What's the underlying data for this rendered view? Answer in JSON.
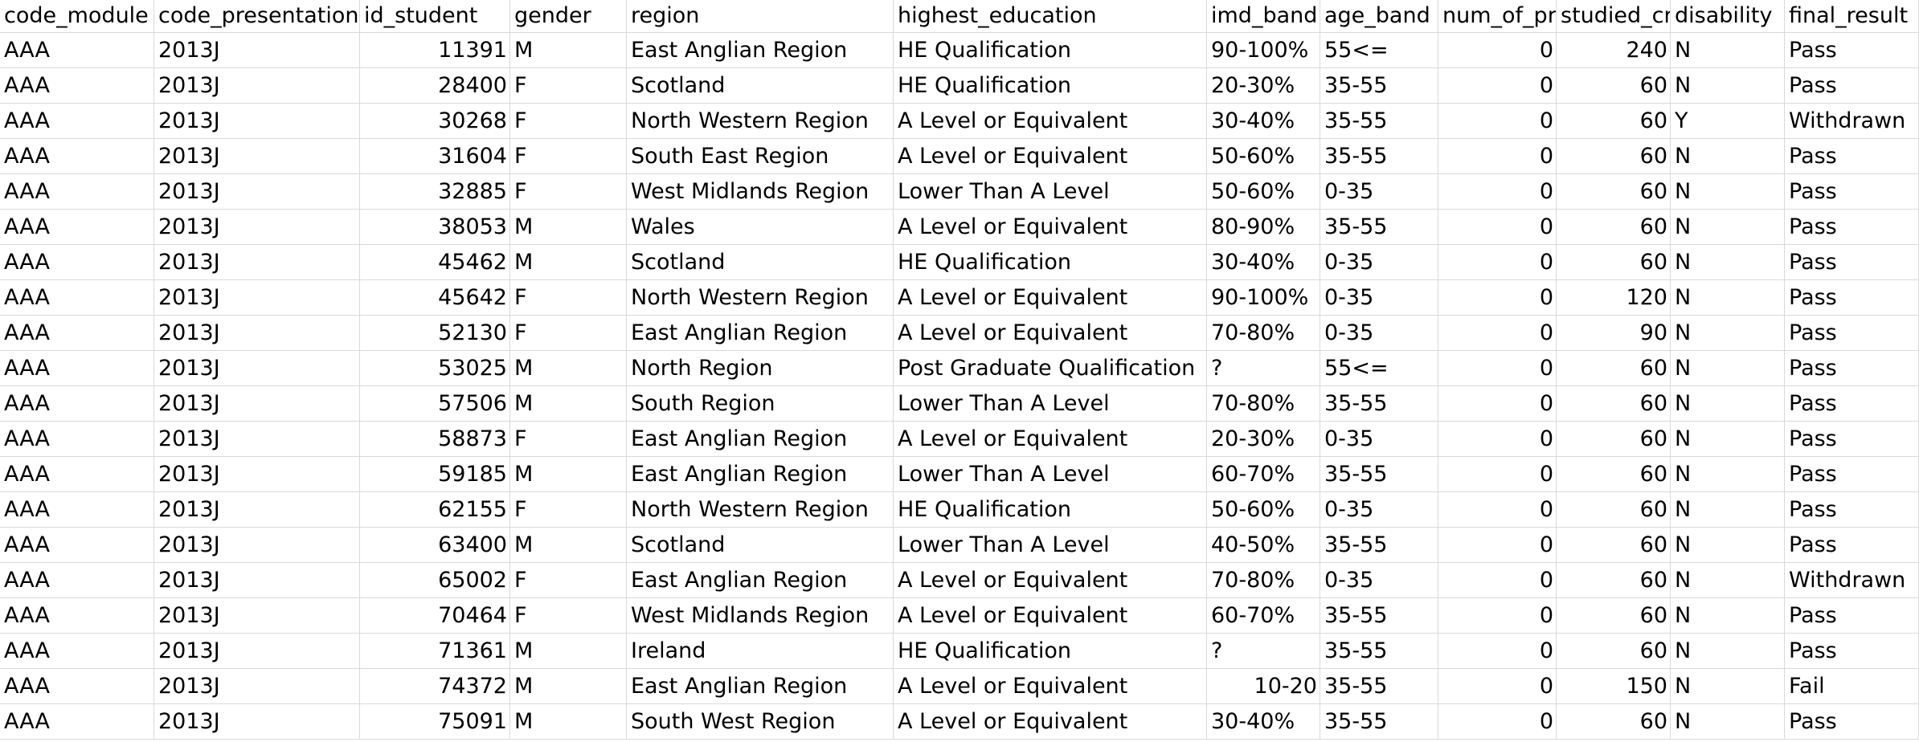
{
  "table": {
    "header": [
      "code_module",
      "code_presentation",
      "id_student",
      "gender",
      "region",
      "highest_education",
      "imd_band",
      "age_band",
      "num_of_pr",
      "studied_cre",
      "disability",
      "final_result"
    ],
    "rows": [
      [
        "AAA",
        "2013J",
        11391,
        "M",
        "East Anglian Region",
        "HE Qualification",
        "90-100%",
        "55<=",
        0,
        240,
        "N",
        "Pass"
      ],
      [
        "AAA",
        "2013J",
        28400,
        "F",
        "Scotland",
        "HE Qualification",
        "20-30%",
        "35-55",
        0,
        60,
        "N",
        "Pass"
      ],
      [
        "AAA",
        "2013J",
        30268,
        "F",
        "North Western Region",
        "A Level or Equivalent",
        "30-40%",
        "35-55",
        0,
        60,
        "Y",
        "Withdrawn"
      ],
      [
        "AAA",
        "2013J",
        31604,
        "F",
        "South East Region",
        "A Level or Equivalent",
        "50-60%",
        "35-55",
        0,
        60,
        "N",
        "Pass"
      ],
      [
        "AAA",
        "2013J",
        32885,
        "F",
        "West Midlands Region",
        "Lower Than A Level",
        "50-60%",
        "0-35",
        0,
        60,
        "N",
        "Pass"
      ],
      [
        "AAA",
        "2013J",
        38053,
        "M",
        "Wales",
        "A Level or Equivalent",
        "80-90%",
        "35-55",
        0,
        60,
        "N",
        "Pass"
      ],
      [
        "AAA",
        "2013J",
        45462,
        "M",
        "Scotland",
        "HE Qualification",
        "30-40%",
        "0-35",
        0,
        60,
        "N",
        "Pass"
      ],
      [
        "AAA",
        "2013J",
        45642,
        "F",
        "North Western Region",
        "A Level or Equivalent",
        "90-100%",
        "0-35",
        0,
        120,
        "N",
        "Pass"
      ],
      [
        "AAA",
        "2013J",
        52130,
        "F",
        "East Anglian Region",
        "A Level or Equivalent",
        "70-80%",
        "0-35",
        0,
        90,
        "N",
        "Pass"
      ],
      [
        "AAA",
        "2013J",
        53025,
        "M",
        "North Region",
        "Post Graduate Qualification",
        "?",
        "55<=",
        0,
        60,
        "N",
        "Pass"
      ],
      [
        "AAA",
        "2013J",
        57506,
        "M",
        "South Region",
        "Lower Than A Level",
        "70-80%",
        "35-55",
        0,
        60,
        "N",
        "Pass"
      ],
      [
        "AAA",
        "2013J",
        58873,
        "F",
        "East Anglian Region",
        "A Level or Equivalent",
        "20-30%",
        "0-35",
        0,
        60,
        "N",
        "Pass"
      ],
      [
        "AAA",
        "2013J",
        59185,
        "M",
        "East Anglian Region",
        "Lower Than A Level",
        "60-70%",
        "35-55",
        0,
        60,
        "N",
        "Pass"
      ],
      [
        "AAA",
        "2013J",
        62155,
        "F",
        "North Western Region",
        "HE Qualification",
        "50-60%",
        "0-35",
        0,
        60,
        "N",
        "Pass"
      ],
      [
        "AAA",
        "2013J",
        63400,
        "M",
        "Scotland",
        "Lower Than A Level",
        "40-50%",
        "35-55",
        0,
        60,
        "N",
        "Pass"
      ],
      [
        "AAA",
        "2013J",
        65002,
        "F",
        "East Anglian Region",
        "A Level or Equivalent",
        "70-80%",
        "0-35",
        0,
        60,
        "N",
        "Withdrawn"
      ],
      [
        "AAA",
        "2013J",
        70464,
        "F",
        "West Midlands Region",
        "A Level or Equivalent",
        "60-70%",
        "35-55",
        0,
        60,
        "N",
        "Pass"
      ],
      [
        "AAA",
        "2013J",
        71361,
        "M",
        "Ireland",
        "HE Qualification",
        "?",
        "35-55",
        0,
        60,
        "N",
        "Pass"
      ],
      [
        "AAA",
        "2013J",
        74372,
        "M",
        "East Anglian Region",
        "A Level or Equivalent",
        "10-20",
        "35-55",
        0,
        150,
        "N",
        "Fail"
      ],
      [
        "AAA",
        "2013J",
        75091,
        "M",
        "South West Region",
        "A Level or Equivalent",
        "30-40%",
        "35-55",
        0,
        60,
        "N",
        "Pass"
      ]
    ]
  }
}
